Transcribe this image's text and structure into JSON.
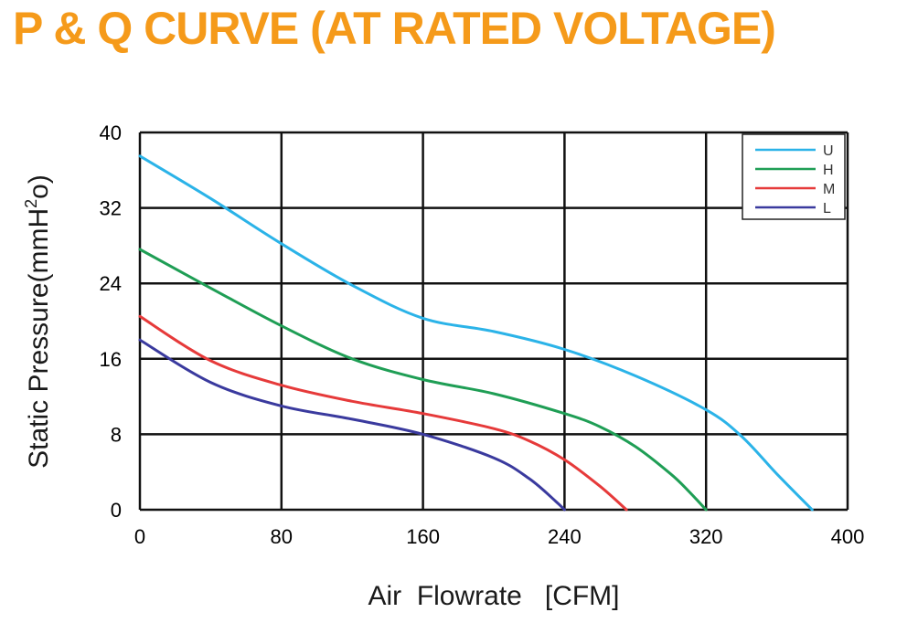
{
  "chart_data": {
    "type": "line",
    "title": "P & Q CURVE (AT RATED VOLTAGE)",
    "xlabel": "Air  Flowrate   [CFM]",
    "ylabel": "Static Pressure(mmH²o)",
    "xlim": [
      0,
      400
    ],
    "ylim": [
      0,
      40
    ],
    "xticks": [
      "0",
      "80",
      "160",
      "240",
      "320",
      "400"
    ],
    "yticks": [
      "0",
      "8",
      "16",
      "24",
      "32",
      "40"
    ],
    "grid": true,
    "legend_position": "top-right",
    "series": [
      {
        "name": "U",
        "color": "#2bb3e8",
        "x": [
          0,
          40,
          80,
          120,
          160,
          200,
          240,
          280,
          320,
          340,
          360,
          380
        ],
        "y": [
          37.5,
          33,
          28.2,
          23.8,
          20.3,
          18.9,
          17,
          14.2,
          10.6,
          7.8,
          3.8,
          0
        ]
      },
      {
        "name": "H",
        "color": "#1f9e55",
        "x": [
          0,
          40,
          80,
          120,
          160,
          200,
          240,
          260,
          280,
          300,
          310,
          320
        ],
        "y": [
          27.6,
          23.5,
          19.5,
          16,
          13.8,
          12.3,
          10.2,
          8.8,
          6.7,
          3.8,
          2,
          0
        ]
      },
      {
        "name": "M",
        "color": "#e63a3a",
        "x": [
          0,
          40,
          80,
          120,
          160,
          200,
          220,
          240,
          260,
          275
        ],
        "y": [
          20.5,
          15.8,
          13.2,
          11.5,
          10.2,
          8.6,
          7.3,
          5.3,
          2.5,
          0
        ]
      },
      {
        "name": "L",
        "color": "#3a3a9e",
        "x": [
          0,
          40,
          80,
          120,
          160,
          200,
          220,
          235,
          240
        ],
        "y": [
          18,
          13.5,
          11,
          9.6,
          8,
          5.5,
          3.3,
          0.9,
          0
        ]
      }
    ]
  },
  "colors": {
    "title": "#f59a1a",
    "grid": "#111111",
    "axis_text": "#1a1a1a"
  }
}
